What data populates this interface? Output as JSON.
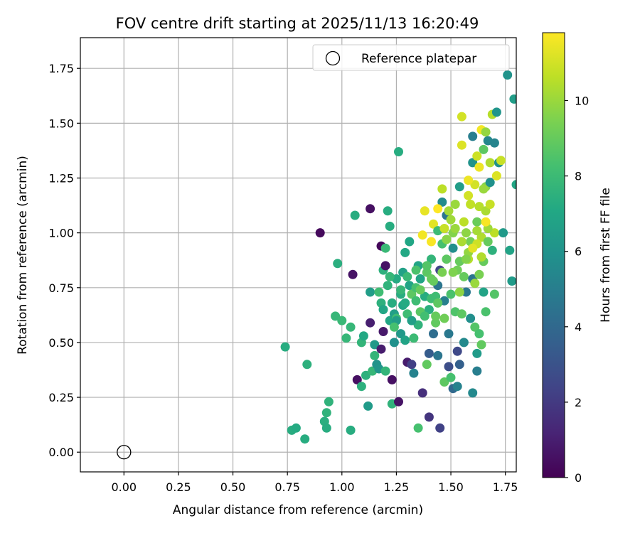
{
  "chart_data": {
    "type": "scatter",
    "title": "FOV centre drift starting at 2025/11/13 16:20:49",
    "xlabel": "Angular distance from reference (arcmin)",
    "ylabel": "Rotation from reference (arcmin)",
    "xlim": [
      -0.2,
      1.8
    ],
    "ylim": [
      -0.09,
      1.89
    ],
    "xticks": [
      "0.00",
      "0.25",
      "0.50",
      "0.75",
      "1.00",
      "1.25",
      "1.50",
      "1.75"
    ],
    "xtick_values": [
      0,
      0.25,
      0.5,
      0.75,
      1.0,
      1.25,
      1.5,
      1.75
    ],
    "yticks": [
      "0.00",
      "0.25",
      "0.50",
      "0.75",
      "1.00",
      "1.25",
      "1.50",
      "1.75"
    ],
    "ytick_values": [
      0,
      0.25,
      0.5,
      0.75,
      1.0,
      1.25,
      1.5,
      1.75
    ],
    "grid": true,
    "legend": {
      "position": "top-right",
      "entries": [
        "Reference platepar"
      ]
    },
    "reference_point": {
      "x": 0.0,
      "y": 0.0
    },
    "colorbar": {
      "label": "Hours from first FF file",
      "min": 0,
      "max": 11.8,
      "ticks": [
        "0",
        "2",
        "4",
        "6",
        "8",
        "10"
      ],
      "tick_values": [
        0,
        2,
        4,
        6,
        8,
        10
      ],
      "colormap": "viridis"
    },
    "points": [
      [
        0.74,
        0.48,
        7.3
      ],
      [
        0.77,
        0.1,
        7.3
      ],
      [
        0.79,
        0.11,
        7.2
      ],
      [
        0.83,
        0.06,
        7.3
      ],
      [
        0.84,
        0.4,
        7.5
      ],
      [
        0.9,
        1.0,
        0.3
      ],
      [
        0.92,
        0.14,
        7.4
      ],
      [
        0.93,
        0.11,
        7.3
      ],
      [
        0.93,
        0.18,
        7.6
      ],
      [
        0.94,
        0.23,
        7.6
      ],
      [
        0.97,
        0.62,
        7.8
      ],
      [
        0.98,
        0.86,
        7.4
      ],
      [
        1.0,
        0.6,
        7.9
      ],
      [
        1.02,
        0.52,
        7.8
      ],
      [
        1.04,
        0.57,
        7.8
      ],
      [
        1.04,
        0.1,
        7.3
      ],
      [
        1.05,
        0.81,
        0.6
      ],
      [
        1.06,
        1.08,
        7.3
      ],
      [
        1.07,
        0.33,
        0.5
      ],
      [
        1.09,
        0.5,
        7.7
      ],
      [
        1.09,
        0.3,
        7.5
      ],
      [
        1.1,
        0.53,
        7.1
      ],
      [
        1.11,
        0.35,
        7.5
      ],
      [
        1.12,
        0.21,
        6.4
      ],
      [
        1.13,
        1.11,
        0.5
      ],
      [
        1.13,
        0.73,
        6.5
      ],
      [
        1.13,
        0.59,
        1.0
      ],
      [
        1.14,
        0.37,
        7.8
      ],
      [
        1.15,
        0.49,
        6.3
      ],
      [
        1.15,
        0.44,
        7.7
      ],
      [
        1.16,
        0.4,
        6.0
      ],
      [
        1.17,
        0.38,
        6.1
      ],
      [
        1.17,
        0.73,
        8.1
      ],
      [
        1.18,
        0.94,
        0.2
      ],
      [
        1.18,
        0.47,
        0.9
      ],
      [
        1.18,
        0.68,
        7.5
      ],
      [
        1.19,
        0.83,
        7.5
      ],
      [
        1.19,
        0.55,
        0.8
      ],
      [
        1.2,
        0.93,
        7.9
      ],
      [
        1.2,
        0.37,
        7.7
      ],
      [
        1.2,
        0.85,
        0.6
      ],
      [
        1.21,
        0.76,
        7.6
      ],
      [
        1.21,
        1.1,
        7.3
      ],
      [
        1.22,
        1.03,
        7.3
      ],
      [
        1.22,
        0.6,
        7.0
      ],
      [
        1.23,
        0.68,
        7.3
      ],
      [
        1.23,
        0.22,
        7.6
      ],
      [
        1.23,
        0.33,
        0.5
      ],
      [
        1.24,
        0.63,
        6.6
      ],
      [
        1.24,
        0.5,
        5.9
      ],
      [
        1.25,
        0.61,
        8.1
      ],
      [
        1.25,
        0.79,
        7.2
      ],
      [
        1.26,
        0.23,
        0.6
      ],
      [
        1.26,
        1.37,
        7.3
      ],
      [
        1.27,
        0.72,
        7.3
      ],
      [
        1.27,
        0.54,
        6.3
      ],
      [
        1.28,
        0.67,
        7.0
      ],
      [
        1.28,
        0.82,
        6.7
      ],
      [
        1.29,
        0.51,
        6.8
      ],
      [
        1.29,
        0.91,
        7.1
      ],
      [
        1.3,
        0.41,
        0.9
      ],
      [
        1.3,
        0.63,
        8.1
      ],
      [
        1.31,
        0.76,
        6.9
      ],
      [
        1.31,
        0.96,
        7.0
      ],
      [
        1.32,
        0.4,
        2.2
      ],
      [
        1.32,
        0.72,
        8.8
      ],
      [
        1.33,
        0.36,
        5.2
      ],
      [
        1.33,
        0.52,
        8.0
      ],
      [
        1.34,
        0.69,
        8.1
      ],
      [
        1.34,
        0.75,
        8.3
      ],
      [
        1.35,
        0.85,
        6.9
      ],
      [
        1.35,
        0.58,
        7.6
      ],
      [
        1.35,
        0.11,
        8.3
      ],
      [
        1.36,
        0.64,
        8.7
      ],
      [
        1.36,
        0.79,
        6.9
      ],
      [
        1.37,
        0.27,
        1.6
      ],
      [
        1.37,
        0.99,
        11.6
      ],
      [
        1.38,
        1.1,
        11.4
      ],
      [
        1.38,
        0.71,
        7.3
      ],
      [
        1.39,
        0.4,
        8.9
      ],
      [
        1.39,
        0.82,
        8.8
      ],
      [
        1.4,
        0.16,
        1.8
      ],
      [
        1.4,
        0.65,
        7.4
      ],
      [
        1.4,
        0.45,
        3.4
      ],
      [
        1.41,
        0.7,
        8.1
      ],
      [
        1.41,
        0.88,
        7.7
      ],
      [
        1.41,
        0.79,
        9.0
      ],
      [
        1.42,
        1.04,
        11.3
      ],
      [
        1.42,
        0.54,
        4.2
      ],
      [
        1.43,
        0.71,
        8.1
      ],
      [
        1.43,
        0.59,
        8.9
      ],
      [
        1.44,
        1.01,
        8.0
      ],
      [
        1.44,
        0.44,
        4.6
      ],
      [
        1.44,
        0.76,
        4.6
      ],
      [
        1.45,
        0.11,
        2.3
      ],
      [
        1.45,
        0.83,
        2.5
      ],
      [
        1.46,
        1.14,
        5.6
      ],
      [
        1.46,
        1.2,
        10.6
      ],
      [
        1.46,
        0.95,
        8.3
      ],
      [
        1.47,
        0.69,
        5.1
      ],
      [
        1.47,
        0.32,
        8.8
      ],
      [
        1.48,
        0.88,
        8.8
      ],
      [
        1.48,
        1.08,
        4.6
      ],
      [
        1.49,
        0.54,
        4.7
      ],
      [
        1.49,
        0.39,
        2.8
      ],
      [
        1.5,
        0.34,
        8.3
      ],
      [
        1.5,
        0.72,
        8.4
      ],
      [
        1.51,
        0.93,
        5.8
      ],
      [
        1.51,
        1.0,
        9.6
      ],
      [
        1.51,
        0.29,
        4.0
      ],
      [
        1.52,
        0.64,
        8.5
      ],
      [
        1.52,
        1.13,
        10.0
      ],
      [
        1.53,
        0.46,
        2.6
      ],
      [
        1.53,
        0.3,
        5.2
      ],
      [
        1.54,
        0.87,
        9.0
      ],
      [
        1.54,
        0.4,
        3.6
      ],
      [
        1.54,
        1.21,
        6.5
      ],
      [
        1.55,
        0.63,
        8.8
      ],
      [
        1.55,
        1.4,
        11.2
      ],
      [
        1.55,
        1.53,
        11.0
      ],
      [
        1.56,
        0.8,
        9.0
      ],
      [
        1.56,
        0.5,
        5.5
      ],
      [
        1.57,
        1.0,
        9.8
      ],
      [
        1.57,
        0.73,
        4.7
      ],
      [
        1.58,
        0.88,
        10.5
      ],
      [
        1.58,
        1.17,
        11.0
      ],
      [
        1.59,
        0.61,
        5.8
      ],
      [
        1.59,
        0.96,
        9.3
      ],
      [
        1.6,
        0.27,
        5.5
      ],
      [
        1.6,
        1.32,
        6.0
      ],
      [
        1.6,
        0.79,
        4.6
      ],
      [
        1.6,
        1.44,
        5.0
      ],
      [
        1.61,
        0.57,
        8.6
      ],
      [
        1.61,
        0.77,
        10.0
      ],
      [
        1.62,
        0.45,
        6.4
      ],
      [
        1.62,
        1.05,
        9.1
      ],
      [
        1.62,
        0.37,
        5.0
      ],
      [
        1.63,
        0.81,
        9.4
      ],
      [
        1.63,
        0.54,
        8.3
      ],
      [
        1.63,
        1.3,
        11.5
      ],
      [
        1.64,
        0.98,
        10.4
      ],
      [
        1.64,
        1.47,
        11.6
      ],
      [
        1.64,
        0.49,
        8.9
      ],
      [
        1.65,
        1.38,
        8.8
      ],
      [
        1.65,
        0.73,
        6.8
      ],
      [
        1.65,
        0.87,
        9.0
      ],
      [
        1.66,
        1.46,
        9.9
      ],
      [
        1.66,
        0.64,
        8.4
      ],
      [
        1.66,
        1.21,
        9.6
      ],
      [
        1.67,
        1.42,
        5.4
      ],
      [
        1.67,
        0.96,
        9.0
      ],
      [
        1.68,
        1.23,
        5.9
      ],
      [
        1.68,
        1.32,
        10.4
      ],
      [
        1.69,
        1.54,
        10.5
      ],
      [
        1.69,
        0.92,
        7.5
      ],
      [
        1.7,
        1.41,
        5.3
      ],
      [
        1.7,
        1.0,
        10.6
      ],
      [
        1.7,
        0.72,
        8.6
      ],
      [
        1.71,
        1.26,
        11.2
      ],
      [
        1.71,
        1.55,
        6.1
      ],
      [
        1.72,
        1.32,
        5.9
      ],
      [
        1.73,
        1.33,
        10.8
      ],
      [
        1.74,
        1.0,
        6.3
      ],
      [
        1.76,
        1.72,
        6.0
      ],
      [
        1.77,
        0.92,
        6.8
      ],
      [
        1.78,
        0.78,
        6.4
      ],
      [
        1.79,
        1.61,
        6.5
      ],
      [
        1.8,
        1.22,
        7.0
      ],
      [
        1.47,
        1.02,
        10.8
      ],
      [
        1.49,
        1.1,
        10.2
      ],
      [
        1.52,
        1.02,
        10.0
      ],
      [
        1.55,
        0.96,
        10.3
      ],
      [
        1.56,
        1.05,
        10.6
      ],
      [
        1.58,
        0.91,
        9.9
      ],
      [
        1.59,
        1.13,
        10.7
      ],
      [
        1.61,
        1.22,
        11.0
      ],
      [
        1.62,
        0.95,
        10.9
      ],
      [
        1.63,
        1.12,
        10.5
      ],
      [
        1.64,
        0.89,
        10.4
      ],
      [
        1.66,
        1.1,
        10.3
      ],
      [
        1.67,
        1.02,
        10.1
      ],
      [
        1.68,
        1.13,
        10.8
      ],
      [
        1.53,
        0.83,
        9.2
      ],
      [
        1.57,
        0.88,
        9.6
      ],
      [
        1.6,
        0.93,
        11.3
      ],
      [
        1.62,
        1.01,
        10.2
      ],
      [
        1.65,
        1.2,
        10.0
      ],
      [
        1.54,
        0.73,
        9.8
      ],
      [
        1.43,
        0.62,
        9.0
      ],
      [
        1.46,
        0.82,
        9.4
      ],
      [
        1.48,
        0.97,
        9.7
      ],
      [
        1.5,
        1.06,
        10.1
      ],
      [
        1.51,
        0.82,
        9.5
      ],
      [
        1.41,
        0.96,
        11.7
      ],
      [
        1.44,
        1.11,
        11.8
      ],
      [
        1.58,
        1.24,
        11.5
      ],
      [
        1.62,
        1.35,
        10.9
      ],
      [
        1.66,
        1.05,
        11.7
      ],
      [
        1.25,
        0.6,
        6.5
      ],
      [
        1.27,
        0.74,
        7.8
      ],
      [
        1.29,
        0.68,
        7.2
      ],
      [
        1.34,
        0.83,
        8.4
      ],
      [
        1.38,
        0.62,
        8.2
      ],
      [
        1.36,
        0.74,
        9.0
      ],
      [
        1.39,
        0.85,
        8.6
      ],
      [
        1.42,
        0.78,
        9.0
      ],
      [
        1.44,
        0.68,
        8.8
      ],
      [
        1.47,
        0.61,
        9.2
      ],
      [
        1.22,
        0.8,
        7.8
      ],
      [
        1.24,
        0.57,
        8.3
      ],
      [
        1.19,
        0.65,
        7.0
      ],
      [
        1.32,
        0.6,
        6.6
      ],
      [
        1.3,
        0.8,
        7.9
      ]
    ]
  }
}
